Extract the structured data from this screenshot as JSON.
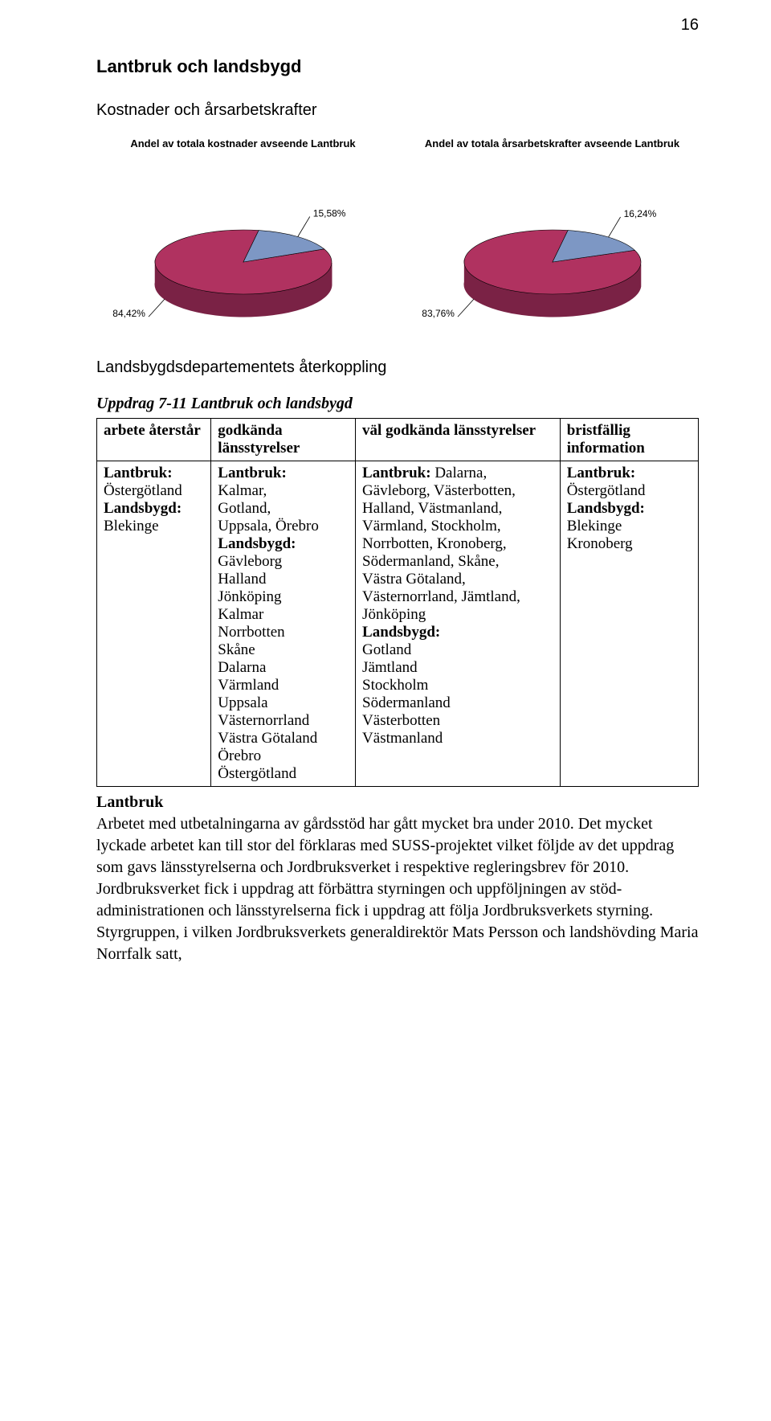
{
  "page_number": "16",
  "h1": "Lantbruk och landsbygd",
  "h2_costs": "Kostnader och årsarbetskrafter",
  "chart_left": {
    "type": "pie-3d",
    "title": "Andel av totala kostnader avseende Lantbruk",
    "slices": [
      {
        "label": "15,58%",
        "value": 15.58,
        "color": "#7d97c4",
        "side_color": "#5a709a"
      },
      {
        "label": "84,42%",
        "value": 84.42,
        "color": "#b03260",
        "side_color": "#7a2245"
      }
    ],
    "background_color": "#ffffff",
    "label_color": "#000000",
    "label_fontfamily": "Arial",
    "label_fontsize": 12,
    "title_fontsize": 13
  },
  "chart_right": {
    "type": "pie-3d",
    "title": "Andel av totala årsarbetskrafter avseende Lantbruk",
    "slices": [
      {
        "label": "16,24%",
        "value": 16.24,
        "color": "#7d97c4",
        "side_color": "#5a709a"
      },
      {
        "label": "83,76%",
        "value": 83.76,
        "color": "#b03260",
        "side_color": "#7a2245"
      }
    ],
    "background_color": "#ffffff",
    "label_color": "#000000",
    "label_fontfamily": "Arial",
    "label_fontsize": 12,
    "title_fontsize": 13
  },
  "h2_dept": "Landsbygdsdepartementets återkoppling",
  "uppdrag_title": "Uppdrag 7-11 Lantbruk och landsbygd",
  "table": {
    "columns": [
      "arbete återstår",
      "godkända länsstyrelser",
      "väl godkända länsstyrelser",
      "bristfällig information"
    ],
    "rows": [
      [
        {
          "bold_lines": [
            "Lantbruk:"
          ],
          "lines": [
            "Östergötland"
          ],
          "bold_lines2": [
            "Landsbygd:"
          ],
          "lines2": [
            "Blekinge"
          ]
        },
        {
          "bold_lines": [
            "Lantbruk:"
          ],
          "lines": [
            "Kalmar,",
            "Gotland,",
            "Uppsala, Örebro"
          ],
          "bold_lines2": [
            "Landsbygd:"
          ],
          "lines2": [
            "Gävleborg",
            "Halland",
            "Jönköping",
            "Kalmar",
            "Norrbotten",
            "Skåne",
            "Dalarna",
            "Värmland",
            "Uppsala",
            "Västernorrland",
            "Västra Götaland",
            "Örebro",
            "Östergötland"
          ]
        },
        {
          "bold_lines": [
            "Lantbruk:"
          ],
          "after_bold": " Dalarna,",
          "lines": [
            "Gävleborg, Västerbotten,",
            "Halland, Västmanland,",
            "Värmland, Stockholm,",
            "Norrbotten, Kronoberg,",
            "Södermanland, Skåne,",
            "Västra Götaland,",
            "Västernorrland, Jämtland,",
            "Jönköping"
          ],
          "bold_lines2": [
            "Landsbygd:"
          ],
          "lines2": [
            "Gotland",
            "Jämtland",
            "Stockholm",
            "Södermanland",
            "Västerbotten",
            "Västmanland"
          ]
        },
        {
          "bold_lines": [
            "Lantbruk:"
          ],
          "lines": [
            "Östergötland"
          ],
          "bold_lines2": [
            "Landsbygd:"
          ],
          "lines2": [
            "Blekinge",
            "Kronoberg"
          ]
        }
      ]
    ],
    "col_widths": [
      "19%",
      "24%",
      "34%",
      "23%"
    ]
  },
  "section_heading": "Lantbruk",
  "body": "Arbetet med utbetalningarna av gårdsstöd har gått mycket bra under 2010. Det mycket lyckade arbetet kan till stor del förklaras med SUSS-projektet vilket följde av det uppdrag som gavs länsstyrelserna och Jordbruksverket i respektive regleringsbrev för 2010. Jordbruksverket fick i uppdrag att förbättra styrningen och uppföljningen av stöd-administrationen och länsstyrelserna fick i uppdrag att följa Jordbruksverkets styrning. Styrgruppen, i vilken Jordbruksverkets generaldirektör Mats Persson och landshövding Maria Norrfalk satt,"
}
